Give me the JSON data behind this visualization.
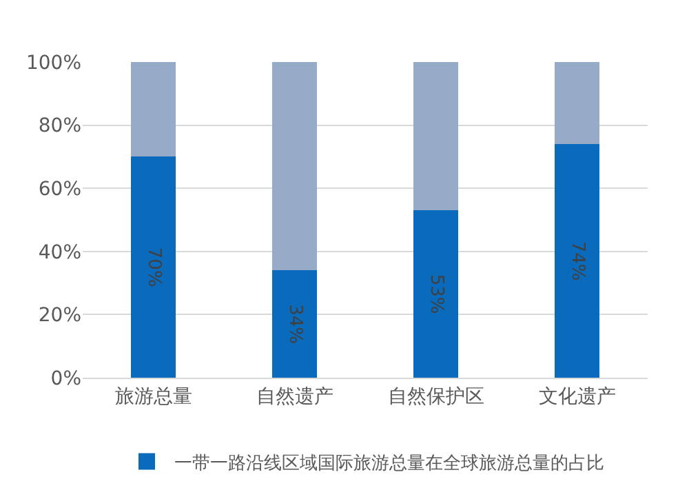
{
  "chart_data": {
    "type": "bar",
    "stacked": true,
    "categories": [
      "旅游总量",
      "自然遗产",
      "自然保护区",
      "文化遗产"
    ],
    "series": [
      {
        "name": "一带一路沿线区域国际旅游总量在全球旅游总量的占比",
        "color": "#0a6bbd",
        "values": [
          70,
          34,
          53,
          74
        ],
        "value_labels": [
          "70%",
          "34%",
          "53%",
          "74%"
        ]
      },
      {
        "color": "#95abc8",
        "values": [
          30,
          66,
          47,
          26
        ]
      }
    ],
    "ylim": [
      0,
      100
    ],
    "yticks": [
      {
        "value": 0,
        "label": "0%"
      },
      {
        "value": 20,
        "label": "20%"
      },
      {
        "value": 40,
        "label": "40%"
      },
      {
        "value": 60,
        "label": "60%"
      },
      {
        "value": 80,
        "label": "80%"
      },
      {
        "value": 100,
        "label": "100%"
      }
    ],
    "grid": "y",
    "legend": "bottom"
  }
}
